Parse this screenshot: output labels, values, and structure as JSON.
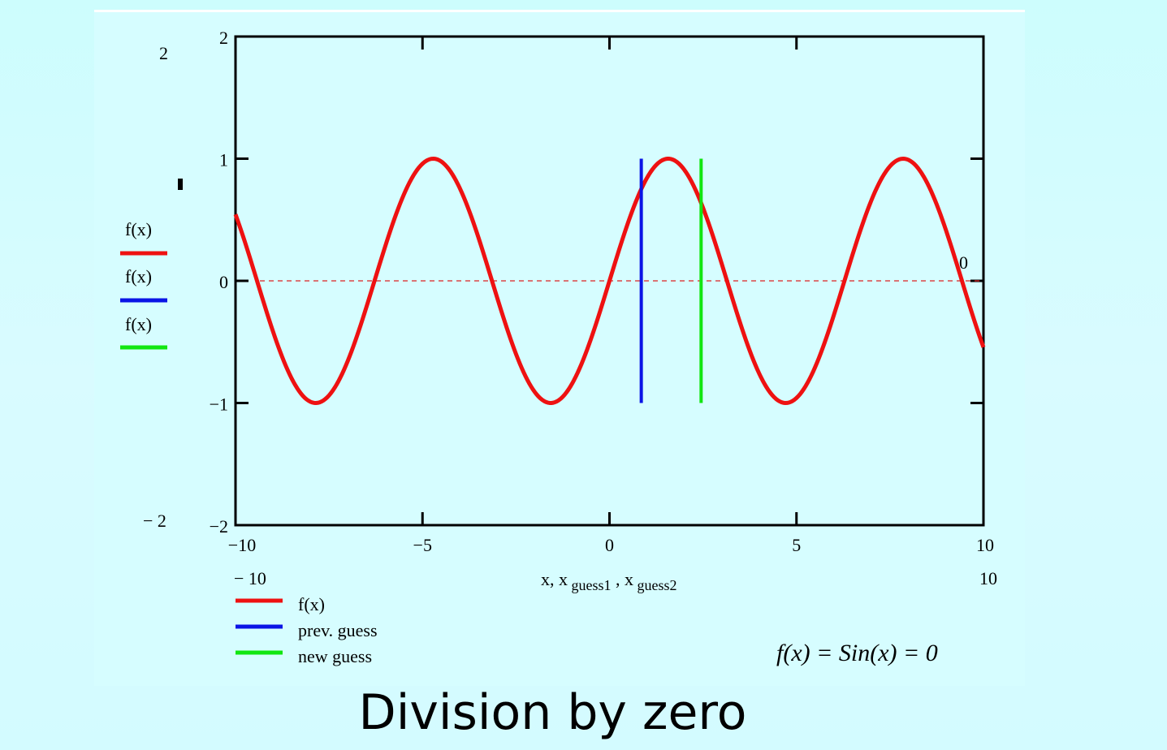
{
  "slide_title": "Division by zero",
  "colors": {
    "background": "#d4fbff",
    "curve": "#ee1111",
    "prev_guess": "#0a14e6",
    "new_guess": "#11e611",
    "zero_line": "#dd2222",
    "axis": "#000000"
  },
  "chart_data": {
    "type": "line",
    "function_label": "f(x) = Sin(x) = 0",
    "xlabel": "x, x guess1 , x guess2",
    "xlim": [
      -10,
      10
    ],
    "ylim": [
      -2,
      2
    ],
    "x_ticks": [
      -10,
      -5,
      0,
      5,
      10
    ],
    "x_tick_labels": [
      "−10",
      "−5",
      "0",
      "5",
      "10"
    ],
    "y_ticks": [
      -2,
      -1,
      0,
      1,
      2
    ],
    "y_tick_labels": [
      "−2",
      "−1",
      "0",
      "1",
      "2"
    ],
    "outer_labels": {
      "y_max": "2",
      "y_min": "− 2",
      "x_min": "− 10",
      "x_max": "10",
      "right_zero": "0"
    },
    "series": [
      {
        "name": "f(x)",
        "legend": "f(x)",
        "color": "#ee1111",
        "expression": "sin(x)",
        "samples": 400
      },
      {
        "name": "prev. guess",
        "legend": "prev. guess",
        "color": "#0a14e6",
        "x": 0.85,
        "y_from": -1,
        "y_to": 1
      },
      {
        "name": "new guess",
        "legend": "new guess",
        "color": "#11e611",
        "x": 2.45,
        "y_from": -1,
        "y_to": 1
      }
    ],
    "y_axis_legend": [
      "f(x)",
      "f(x)",
      "f(x)"
    ],
    "zero_reference_line": {
      "y": 0,
      "style": "dashed"
    }
  }
}
